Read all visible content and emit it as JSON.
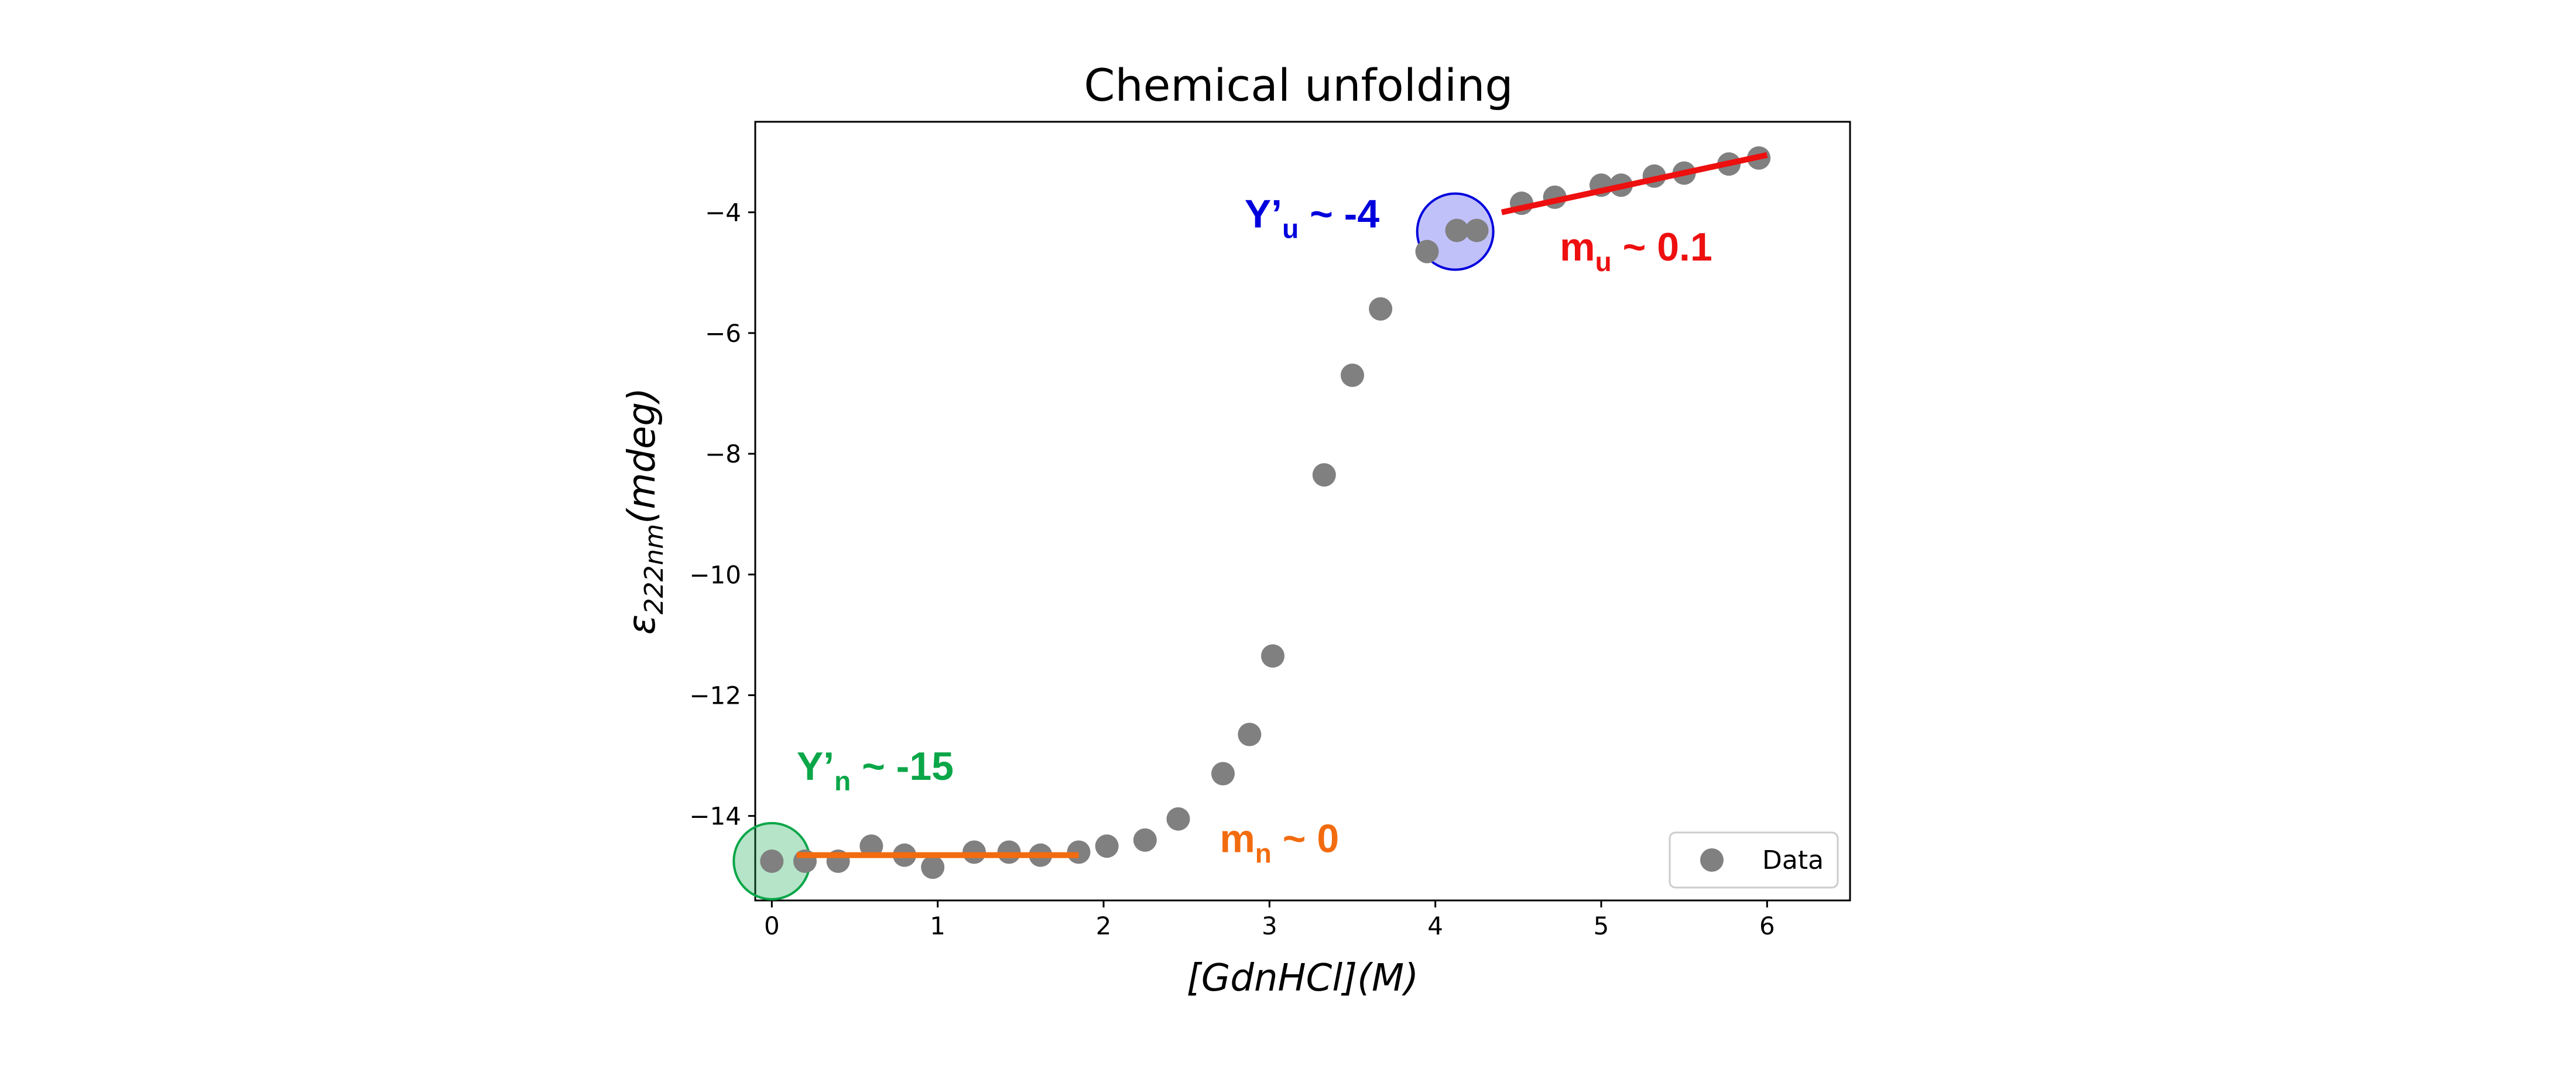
{
  "chart_data": {
    "type": "scatter",
    "title": "Chemical unfolding",
    "xlabel": "[GdnHCl](M)",
    "ylabel": {
      "prefix": "ε",
      "subscript": "222nm",
      "suffix": "(mdeg)"
    },
    "xlim": [
      -0.1,
      6.5
    ],
    "ylim": [
      -15.4,
      -2.5
    ],
    "xticks": [
      0,
      1,
      2,
      3,
      4,
      5,
      6
    ],
    "yticks": [
      -4,
      -6,
      -8,
      -10,
      -12,
      -14
    ],
    "xtick_labels": [
      "0",
      "1",
      "2",
      "3",
      "4",
      "5",
      "6"
    ],
    "ytick_labels": [
      "−4",
      "−6",
      "−8",
      "−10",
      "−12",
      "−14"
    ],
    "grid": false,
    "legend": {
      "position": "bottom-right",
      "entries": [
        "Data"
      ]
    },
    "series": [
      {
        "name": "Data",
        "color": "#808080",
        "points": [
          [
            0.0,
            -14.75
          ],
          [
            0.2,
            -14.75
          ],
          [
            0.4,
            -14.75
          ],
          [
            0.6,
            -14.5
          ],
          [
            0.8,
            -14.65
          ],
          [
            0.97,
            -14.85
          ],
          [
            1.22,
            -14.6
          ],
          [
            1.43,
            -14.6
          ],
          [
            1.62,
            -14.65
          ],
          [
            1.85,
            -14.6
          ],
          [
            2.02,
            -14.5
          ],
          [
            2.25,
            -14.4
          ],
          [
            2.45,
            -14.05
          ],
          [
            2.72,
            -13.3
          ],
          [
            2.88,
            -12.65
          ],
          [
            3.02,
            -11.35
          ],
          [
            3.33,
            -8.35
          ],
          [
            3.5,
            -6.7
          ],
          [
            3.67,
            -5.6
          ],
          [
            3.95,
            -4.65
          ],
          [
            4.13,
            -4.3
          ],
          [
            4.25,
            -4.3
          ],
          [
            4.52,
            -3.85
          ],
          [
            4.72,
            -3.75
          ],
          [
            5.0,
            -3.55
          ],
          [
            5.12,
            -3.55
          ],
          [
            5.32,
            -3.4
          ],
          [
            5.5,
            -3.35
          ],
          [
            5.77,
            -3.2
          ],
          [
            5.95,
            -3.1
          ]
        ]
      }
    ],
    "fit_lines": [
      {
        "color": "#f26b0f",
        "x": [
          0.15,
          1.85
        ],
        "y": [
          -14.65,
          -14.65
        ]
      },
      {
        "color": "#ee0f0f",
        "x": [
          4.4,
          6.0
        ],
        "y": [
          -4.0,
          -3.05
        ]
      }
    ],
    "markers": [
      {
        "x": 0.0,
        "y": -14.75,
        "fill": "#0aa648",
        "stroke": "#0aa648"
      },
      {
        "x": 4.12,
        "y": -4.32,
        "fill": "#3333ee",
        "stroke": "#0000dd"
      }
    ],
    "annotations": [
      {
        "main": "Y’",
        "sub": "n",
        "rest": " ~ -15",
        "color": "#0aa648",
        "x": 0.15,
        "y": -13.4
      },
      {
        "main": "m",
        "sub": "n",
        "rest": " ~ 0",
        "color": "#f26b0f",
        "x": 2.7,
        "y": -14.6
      },
      {
        "main": "Y’",
        "sub": "u",
        "rest": " ~ -4",
        "color": "#0000dd",
        "x": 2.85,
        "y": -4.25
      },
      {
        "main": "m",
        "sub": "u",
        "rest": " ~ 0.1",
        "color": "#ee0f0f",
        "x": 4.75,
        "y": -4.8
      }
    ]
  }
}
